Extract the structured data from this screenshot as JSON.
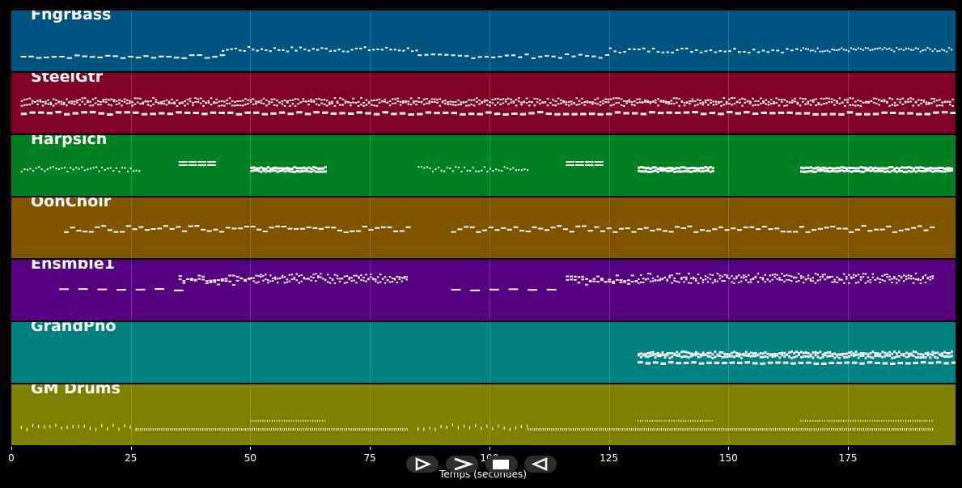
{
  "tracks": [
    {
      "name": "FngrBass",
      "color": "#005580",
      "pattern": "bass"
    },
    {
      "name": "SteelGtr",
      "color": "#800026",
      "pattern": "dense"
    },
    {
      "name": "Harpsich",
      "color": "#008020",
      "pattern": "harpsi"
    },
    {
      "name": "OohChoir",
      "color": "#805500",
      "pattern": "choir"
    },
    {
      "name": "Ensmble1",
      "color": "#550080",
      "pattern": "ensemble"
    },
    {
      "name": "GrandPno",
      "color": "#008080",
      "pattern": "piano"
    },
    {
      "name": "GM Drums",
      "color": "#808000",
      "pattern": "drums"
    }
  ],
  "axis": {
    "title": "Temps (secondes)",
    "min": 0,
    "max": 197.5,
    "ticks": [
      0,
      25,
      50,
      75,
      100,
      125,
      150,
      175
    ]
  },
  "controls": [
    {
      "name": "play-button",
      "icon": "play-icon"
    },
    {
      "name": "forward-button",
      "icon": "forward-icon"
    },
    {
      "name": "stop-button",
      "icon": "stop-icon"
    },
    {
      "name": "rewind-button",
      "icon": "rewind-icon"
    }
  ]
}
